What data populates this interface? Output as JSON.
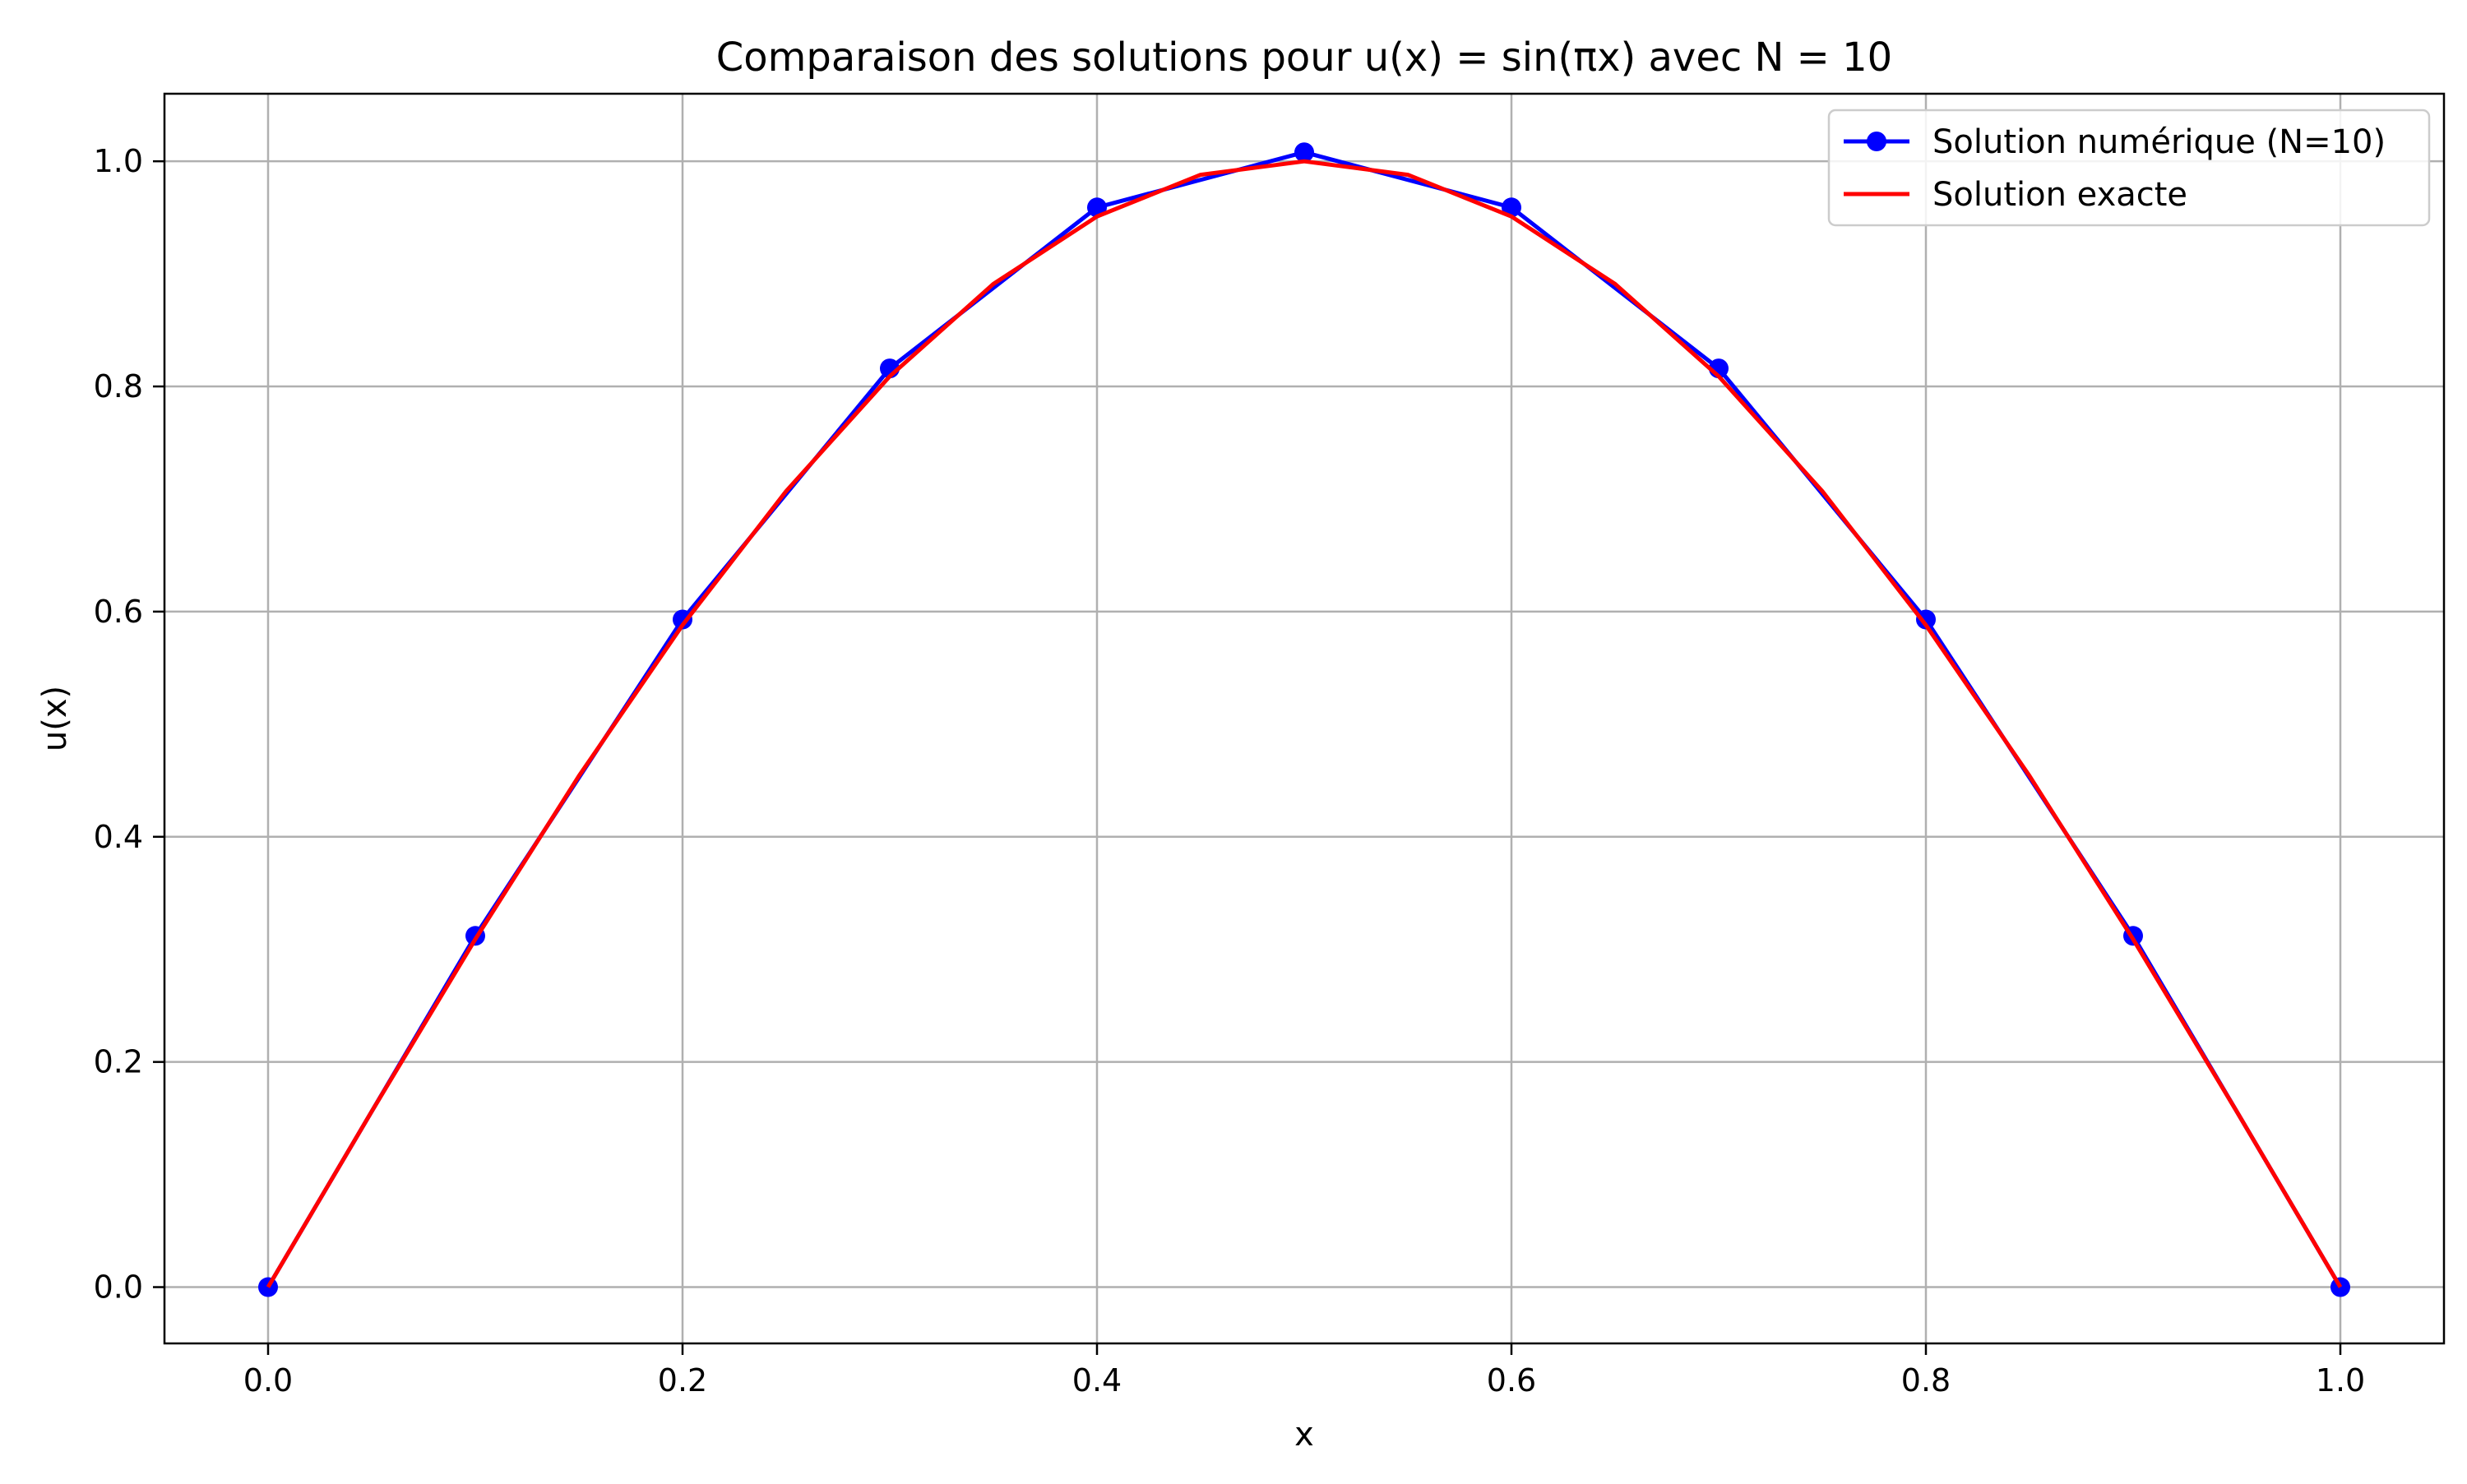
{
  "chart_data": {
    "type": "line",
    "title": "Comparaison des solutions pour u(x) = sin(πx) avec N = 10",
    "xlabel": "x",
    "ylabel": "u(x)",
    "xlim": [
      -0.05,
      1.05
    ],
    "ylim": [
      -0.05,
      1.06
    ],
    "xticks": [
      0.0,
      0.2,
      0.4,
      0.6,
      0.8,
      1.0
    ],
    "xtick_labels": [
      "0.0",
      "0.2",
      "0.4",
      "0.6",
      "0.8",
      "1.0"
    ],
    "yticks": [
      0.0,
      0.2,
      0.4,
      0.6,
      0.8,
      1.0
    ],
    "ytick_labels": [
      "0.0",
      "0.2",
      "0.4",
      "0.6",
      "0.8",
      "1.0"
    ],
    "grid": true,
    "legend_position": "top-right",
    "series": [
      {
        "name": "Solution numérique (N=10)",
        "color": "#0000ff",
        "marker": "circle",
        "x": [
          0.0,
          0.1,
          0.2,
          0.3,
          0.4,
          0.5,
          0.6,
          0.7,
          0.8,
          0.9,
          1.0
        ],
        "y": [
          0.0,
          0.312,
          0.593,
          0.816,
          0.959,
          1.008,
          0.959,
          0.816,
          0.593,
          0.312,
          0.0
        ]
      },
      {
        "name": "Solution exacte",
        "color": "#ff0000",
        "marker": "none",
        "x": [
          0.0,
          0.05,
          0.1,
          0.15,
          0.2,
          0.25,
          0.3,
          0.35,
          0.4,
          0.45,
          0.5,
          0.55,
          0.6,
          0.65,
          0.7,
          0.75,
          0.8,
          0.85,
          0.9,
          0.95,
          1.0
        ],
        "y": [
          0.0,
          0.156,
          0.309,
          0.454,
          0.588,
          0.707,
          0.809,
          0.891,
          0.951,
          0.988,
          1.0,
          0.988,
          0.951,
          0.891,
          0.809,
          0.707,
          0.588,
          0.454,
          0.309,
          0.156,
          0.0
        ]
      }
    ]
  }
}
